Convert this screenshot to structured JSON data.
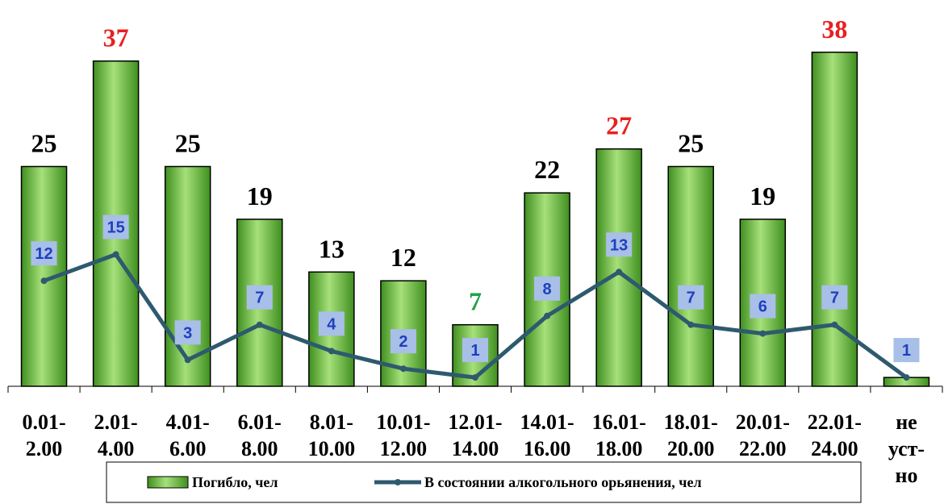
{
  "chart_data": {
    "type": "bar",
    "categories": [
      [
        "0.01-",
        "2.00"
      ],
      [
        "2.01-",
        "4.00"
      ],
      [
        "4.01-",
        "6.00"
      ],
      [
        "6.01-",
        "8.00"
      ],
      [
        "8.01-",
        "10.00"
      ],
      [
        "10.01-",
        "12.00"
      ],
      [
        "12.01-",
        "14.00"
      ],
      [
        "14.01-",
        "16.00"
      ],
      [
        "16.01-",
        "18.00"
      ],
      [
        "18.01-",
        "20.00"
      ],
      [
        "20.01-",
        "22.00"
      ],
      [
        "22.01-",
        "24.00"
      ],
      [
        "не",
        "уст-",
        "но"
      ]
    ],
    "series": [
      {
        "name": "Погибло, чел",
        "kind": "bar",
        "color": "#5aa832",
        "values": [
          25,
          37,
          25,
          19,
          13,
          12,
          7,
          22,
          27,
          25,
          19,
          38,
          1
        ],
        "label_colors": [
          "#000000",
          "#e8201f",
          "#000000",
          "#000000",
          "#000000",
          "#000000",
          "#22a04a",
          "#000000",
          "#e8201f",
          "#000000",
          "#000000",
          "#e8201f",
          "#000000"
        ],
        "show_labels": [
          true,
          true,
          true,
          true,
          true,
          true,
          true,
          true,
          true,
          true,
          true,
          true,
          false
        ]
      },
      {
        "name": "В состоянии алкогольного орьянения, чел",
        "kind": "line",
        "color": "#2e5a6e",
        "values": [
          12,
          15,
          3,
          7,
          4,
          2,
          1,
          8,
          13,
          7,
          6,
          7,
          1
        ],
        "label_bg": "#a8bfe8",
        "label_color": "#1f3fbf"
      }
    ],
    "ylim": [
      0,
      40
    ],
    "grid": false,
    "legend_position": "bottom"
  }
}
